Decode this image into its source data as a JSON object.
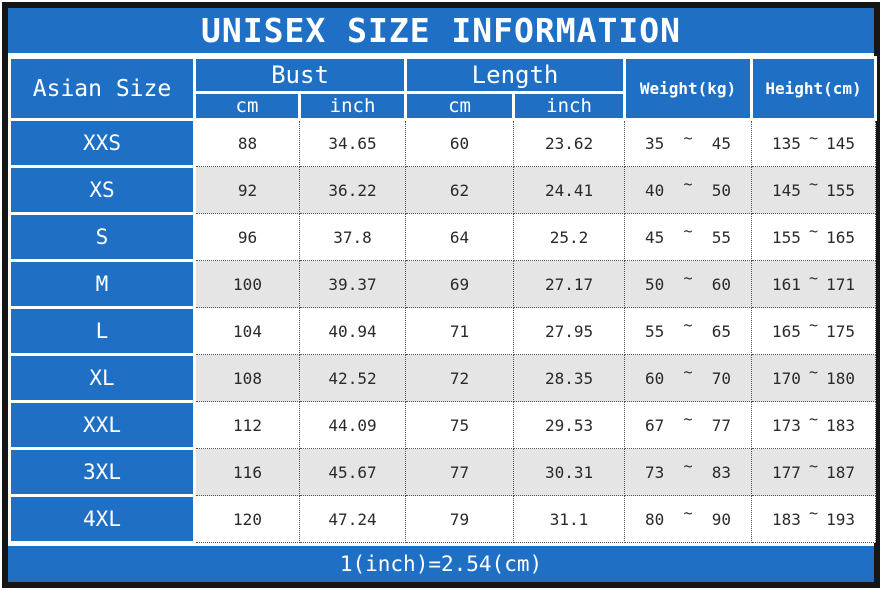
{
  "title": "UNISEX SIZE INFORMATION",
  "header": {
    "asian_size": "Asian Size",
    "bust": "Bust",
    "length": "Length",
    "weight": "Weight(kg)",
    "height": "Height(cm)",
    "unit_cm": "cm",
    "unit_inch": "inch"
  },
  "range_separator": "~",
  "rows": [
    {
      "size": "XXS",
      "bust_cm": "88",
      "bust_inch": "34.65",
      "length_cm": "60",
      "length_inch": "23.62",
      "weight_min": "35",
      "weight_max": "45",
      "height_min": "135",
      "height_max": "145"
    },
    {
      "size": "XS",
      "bust_cm": "92",
      "bust_inch": "36.22",
      "length_cm": "62",
      "length_inch": "24.41",
      "weight_min": "40",
      "weight_max": "50",
      "height_min": "145",
      "height_max": "155"
    },
    {
      "size": "S",
      "bust_cm": "96",
      "bust_inch": "37.8",
      "length_cm": "64",
      "length_inch": "25.2",
      "weight_min": "45",
      "weight_max": "55",
      "height_min": "155",
      "height_max": "165"
    },
    {
      "size": "M",
      "bust_cm": "100",
      "bust_inch": "39.37",
      "length_cm": "69",
      "length_inch": "27.17",
      "weight_min": "50",
      "weight_max": "60",
      "height_min": "161",
      "height_max": "171"
    },
    {
      "size": "L",
      "bust_cm": "104",
      "bust_inch": "40.94",
      "length_cm": "71",
      "length_inch": "27.95",
      "weight_min": "55",
      "weight_max": "65",
      "height_min": "165",
      "height_max": "175"
    },
    {
      "size": "XL",
      "bust_cm": "108",
      "bust_inch": "42.52",
      "length_cm": "72",
      "length_inch": "28.35",
      "weight_min": "60",
      "weight_max": "70",
      "height_min": "170",
      "height_max": "180"
    },
    {
      "size": "XXL",
      "bust_cm": "112",
      "bust_inch": "44.09",
      "length_cm": "75",
      "length_inch": "29.53",
      "weight_min": "67",
      "weight_max": "77",
      "height_min": "173",
      "height_max": "183"
    },
    {
      "size": "3XL",
      "bust_cm": "116",
      "bust_inch": "45.67",
      "length_cm": "77",
      "length_inch": "30.31",
      "weight_min": "73",
      "weight_max": "83",
      "height_min": "177",
      "height_max": "187"
    },
    {
      "size": "4XL",
      "bust_cm": "120",
      "bust_inch": "47.24",
      "length_cm": "79",
      "length_inch": "31.1",
      "weight_min": "80",
      "weight_max": "90",
      "height_min": "183",
      "height_max": "193"
    }
  ],
  "footer_note": "1(inch)=2.54(cm)",
  "colors": {
    "accent_blue": "#1f70c4",
    "alt_row_grey": "#e5e5e5",
    "frame_black": "#161616"
  }
}
